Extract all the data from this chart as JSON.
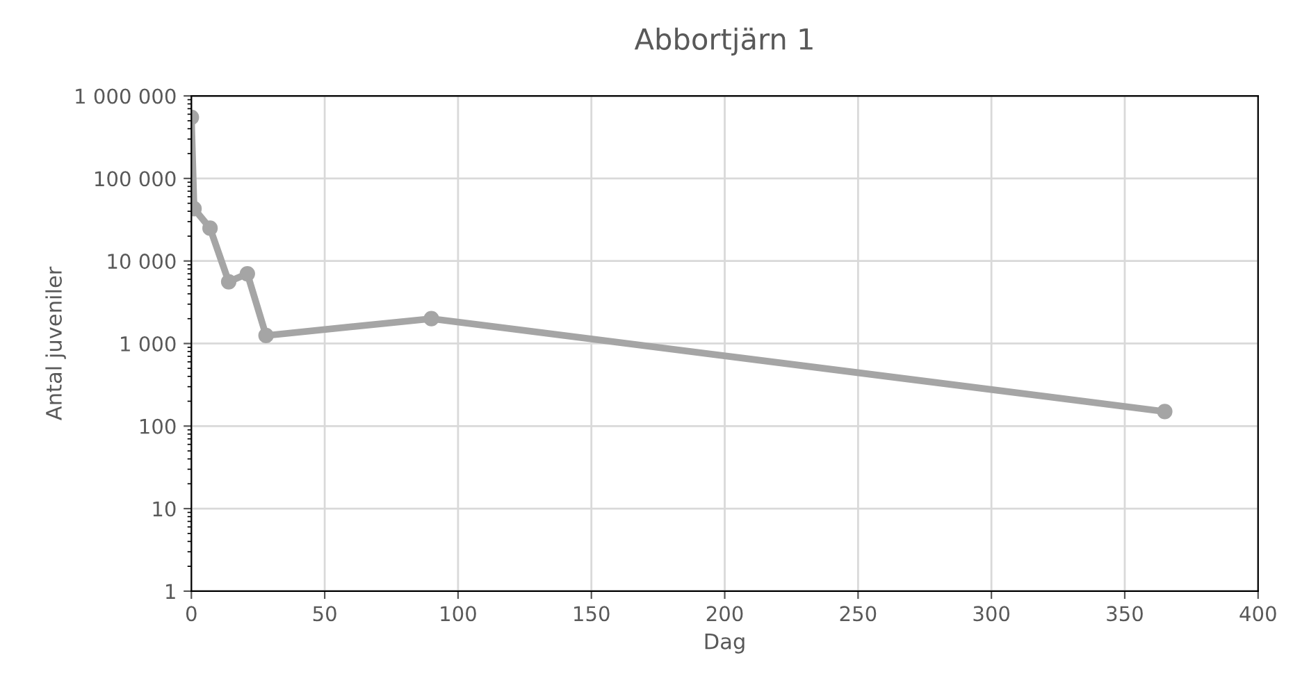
{
  "chart_data": {
    "type": "line",
    "title": "Abbortjärn 1",
    "xlabel": "Dag",
    "ylabel": "Antal juveniler",
    "x": [
      0,
      1,
      7,
      14,
      21,
      28,
      90,
      365
    ],
    "series": [
      {
        "color": "#a5a5a5",
        "values": [
          550000,
          43000,
          25000,
          5600,
          7000,
          1250,
          2000,
          150
        ]
      }
    ],
    "log": "y",
    "grid": true,
    "marker": "circle",
    "line_style": "solid",
    "legend": false,
    "xlim": [
      0,
      400
    ],
    "xticks": [
      0,
      50,
      100,
      150,
      200,
      250,
      300,
      350,
      400
    ],
    "ylim": [
      1,
      1000000
    ],
    "yticks": [
      1,
      10,
      100,
      {
        "value": 1000,
        "label": "1 000"
      },
      {
        "value": 10000,
        "label": "10 000"
      },
      {
        "value": 100000,
        "label": "100 000"
      },
      {
        "value": 1000000,
        "label": "1 000 000"
      }
    ]
  }
}
